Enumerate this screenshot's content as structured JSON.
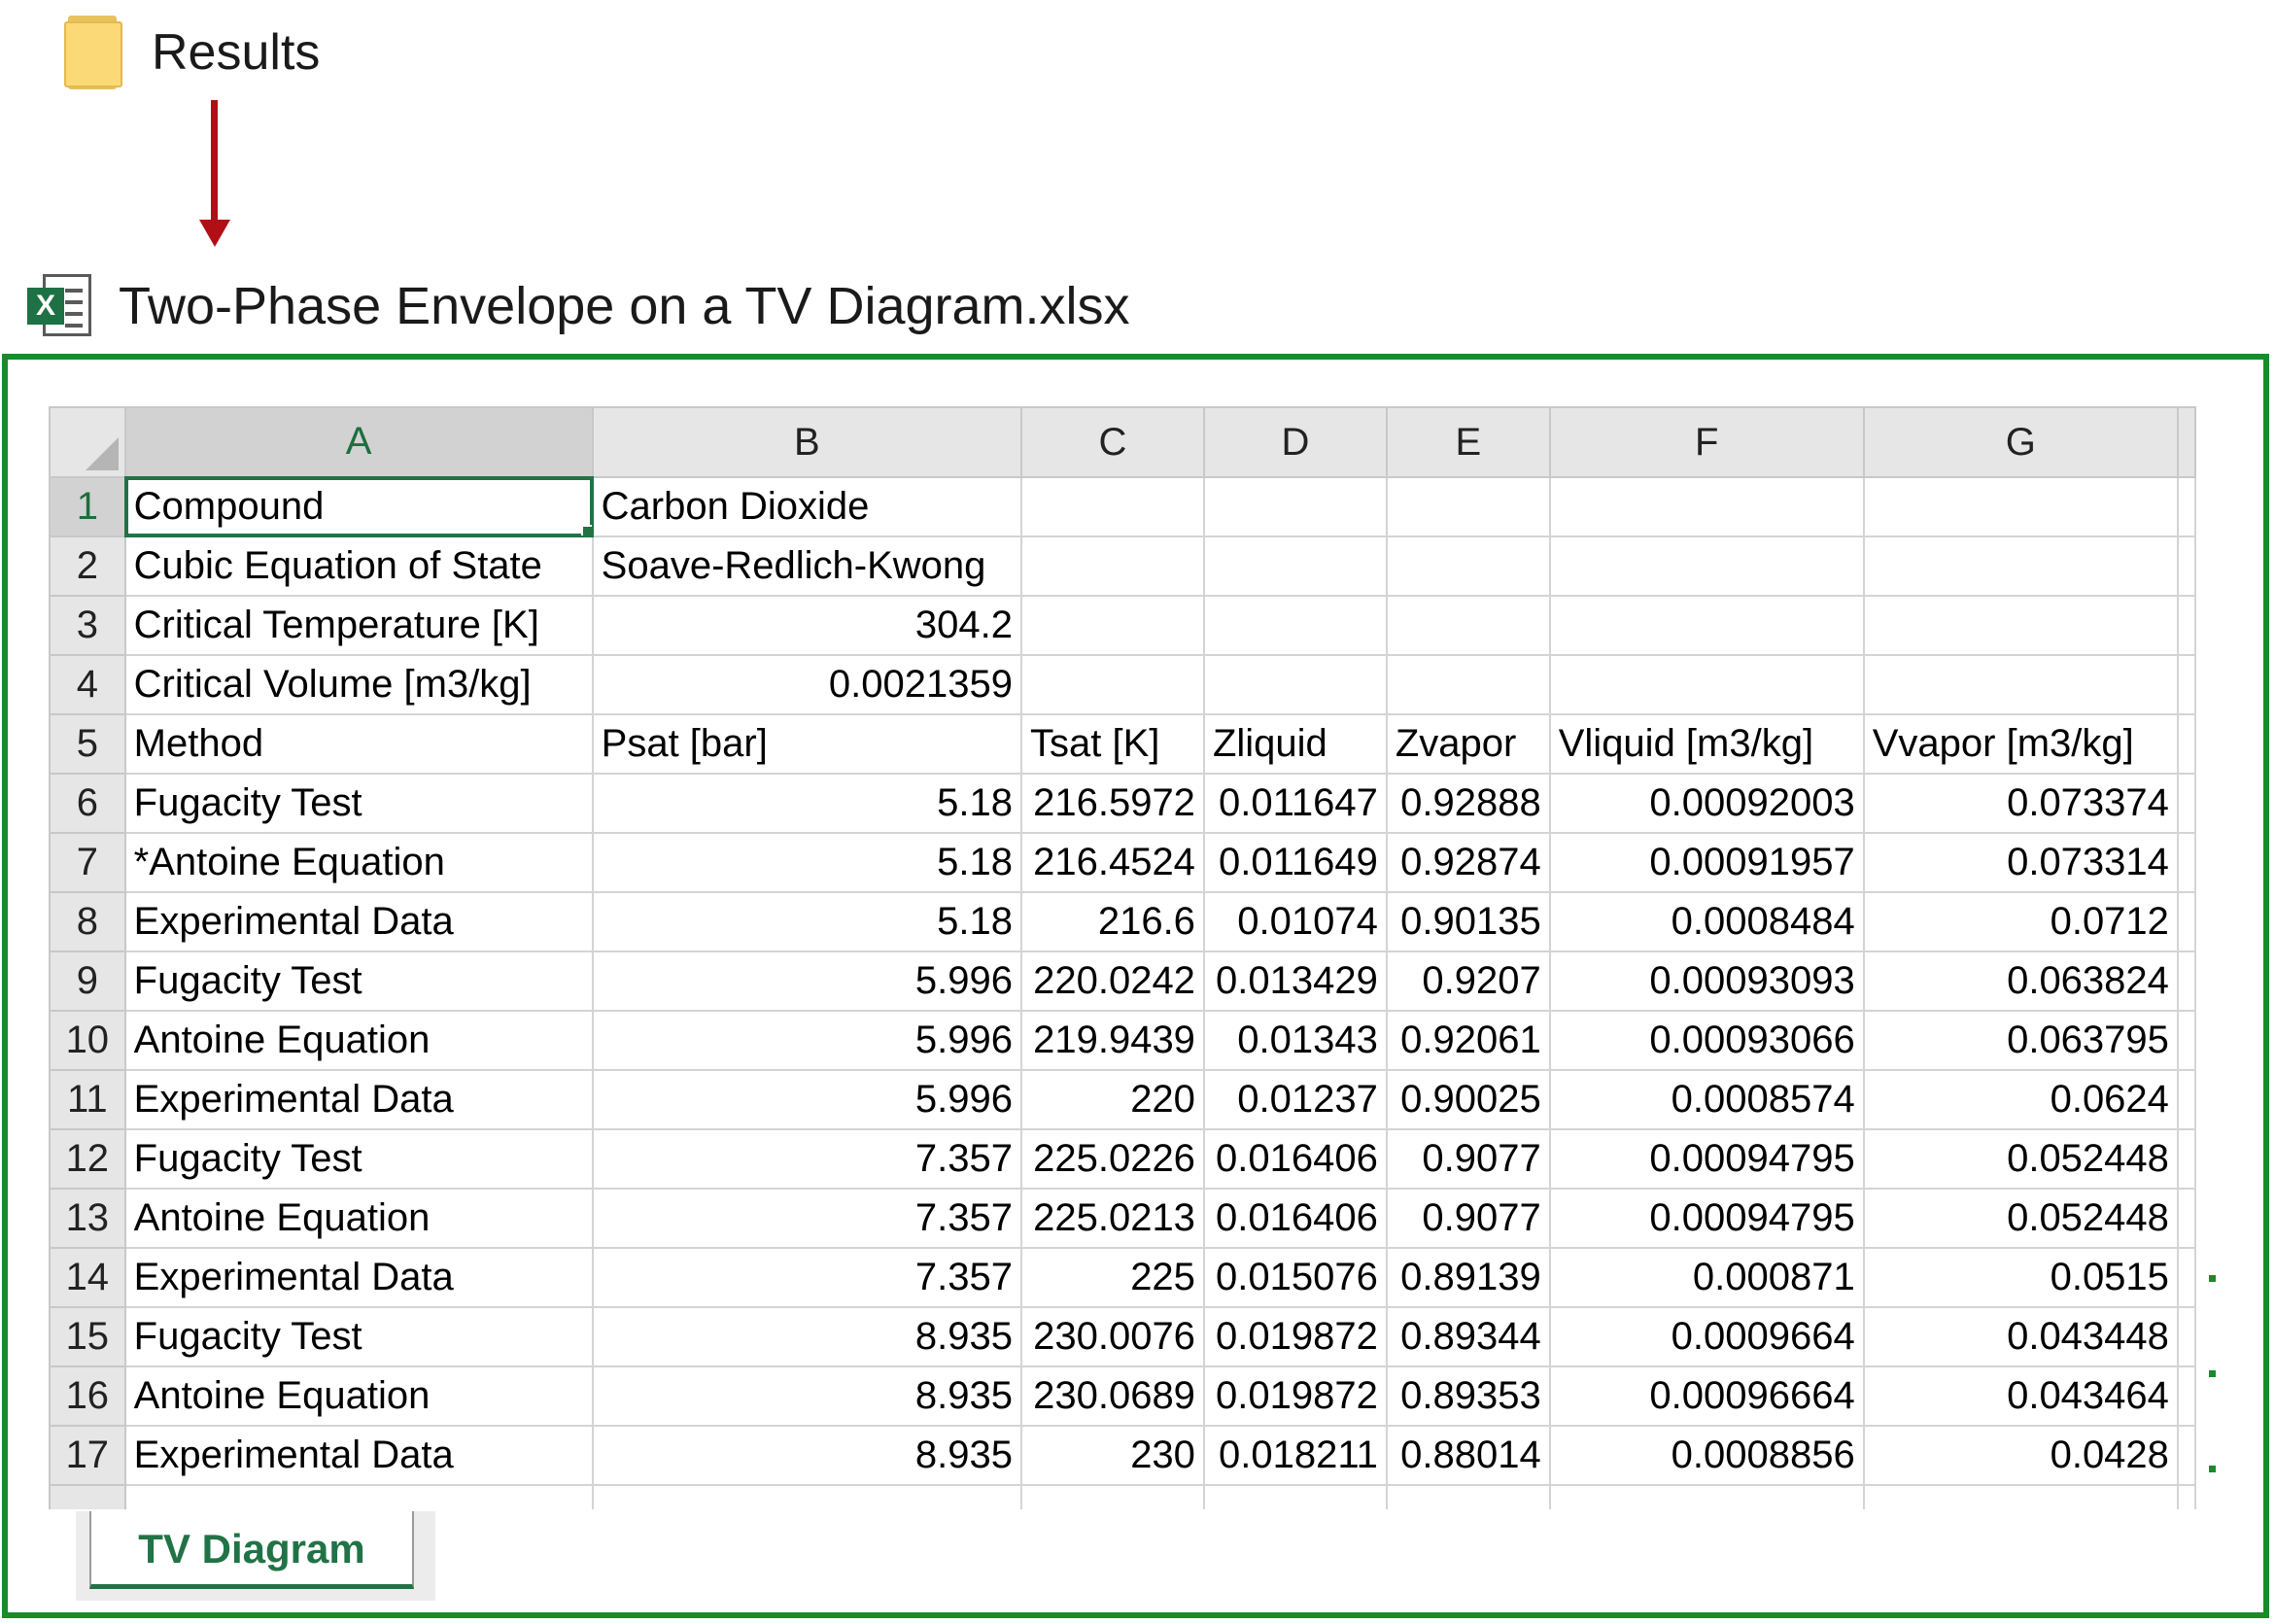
{
  "folder": {
    "label": "Results",
    "icon": "folder-icon"
  },
  "file": {
    "label": "Two-Phase Envelope on a TV Diagram.xlsx",
    "icon": "excel-icon",
    "badge": "X"
  },
  "colors": {
    "frame": "#1a8a2a",
    "arrow": "#b10e16",
    "excel_green": "#217346"
  },
  "sheet": {
    "columns": [
      "A",
      "B",
      "C",
      "D",
      "E",
      "F",
      "G"
    ],
    "rows": [
      {
        "num": "1",
        "cells": [
          "Compound",
          "Carbon Dioxide",
          "",
          "",
          "",
          "",
          ""
        ]
      },
      {
        "num": "2",
        "cells": [
          "Cubic Equation of State",
          "Soave-Redlich-Kwong",
          "",
          "",
          "",
          "",
          ""
        ]
      },
      {
        "num": "3",
        "cells": [
          "Critical Temperature [K]",
          "304.2",
          "",
          "",
          "",
          "",
          ""
        ]
      },
      {
        "num": "4",
        "cells": [
          "Critical Volume [m3/kg]",
          "0.0021359",
          "",
          "",
          "",
          "",
          ""
        ]
      },
      {
        "num": "5",
        "cells": [
          "Method",
          "Psat [bar]",
          "Tsat [K]",
          "Zliquid",
          "Zvapor",
          "Vliquid [m3/kg]",
          "Vvapor [m3/kg]"
        ]
      },
      {
        "num": "6",
        "cells": [
          "Fugacity Test",
          "5.18",
          "216.5972",
          "0.011647",
          "0.92888",
          "0.00092003",
          "0.073374"
        ]
      },
      {
        "num": "7",
        "cells": [
          "*Antoine Equation",
          "5.18",
          "216.4524",
          "0.011649",
          "0.92874",
          "0.00091957",
          "0.073314"
        ]
      },
      {
        "num": "8",
        "cells": [
          "Experimental Data",
          "5.18",
          "216.6",
          "0.01074",
          "0.90135",
          "0.0008484",
          "0.0712"
        ]
      },
      {
        "num": "9",
        "cells": [
          "Fugacity Test",
          "5.996",
          "220.0242",
          "0.013429",
          "0.9207",
          "0.00093093",
          "0.063824"
        ]
      },
      {
        "num": "10",
        "cells": [
          "Antoine Equation",
          "5.996",
          "219.9439",
          "0.01343",
          "0.92061",
          "0.00093066",
          "0.063795"
        ]
      },
      {
        "num": "11",
        "cells": [
          "Experimental Data",
          "5.996",
          "220",
          "0.01237",
          "0.90025",
          "0.0008574",
          "0.0624"
        ]
      },
      {
        "num": "12",
        "cells": [
          "Fugacity Test",
          "7.357",
          "225.0226",
          "0.016406",
          "0.9077",
          "0.00094795",
          "0.052448"
        ]
      },
      {
        "num": "13",
        "cells": [
          "Antoine Equation",
          "7.357",
          "225.0213",
          "0.016406",
          "0.9077",
          "0.00094795",
          "0.052448"
        ]
      },
      {
        "num": "14",
        "cells": [
          "Experimental Data",
          "7.357",
          "225",
          "0.015076",
          "0.89139",
          "0.000871",
          "0.0515"
        ]
      },
      {
        "num": "15",
        "cells": [
          "Fugacity Test",
          "8.935",
          "230.0076",
          "0.019872",
          "0.89344",
          "0.0009664",
          "0.043448"
        ]
      },
      {
        "num": "16",
        "cells": [
          "Antoine Equation",
          "8.935",
          "230.0689",
          "0.019872",
          "0.89353",
          "0.00096664",
          "0.043464"
        ]
      },
      {
        "num": "17",
        "cells": [
          "Experimental Data",
          "8.935",
          "230",
          "0.018211",
          "0.88014",
          "0.0008856",
          "0.0428"
        ]
      },
      {
        "num": "",
        "cells": [
          "",
          "",
          "",
          "",
          "",
          "",
          ""
        ]
      }
    ],
    "selected_cell": "A1",
    "tab": "TV Diagram"
  }
}
